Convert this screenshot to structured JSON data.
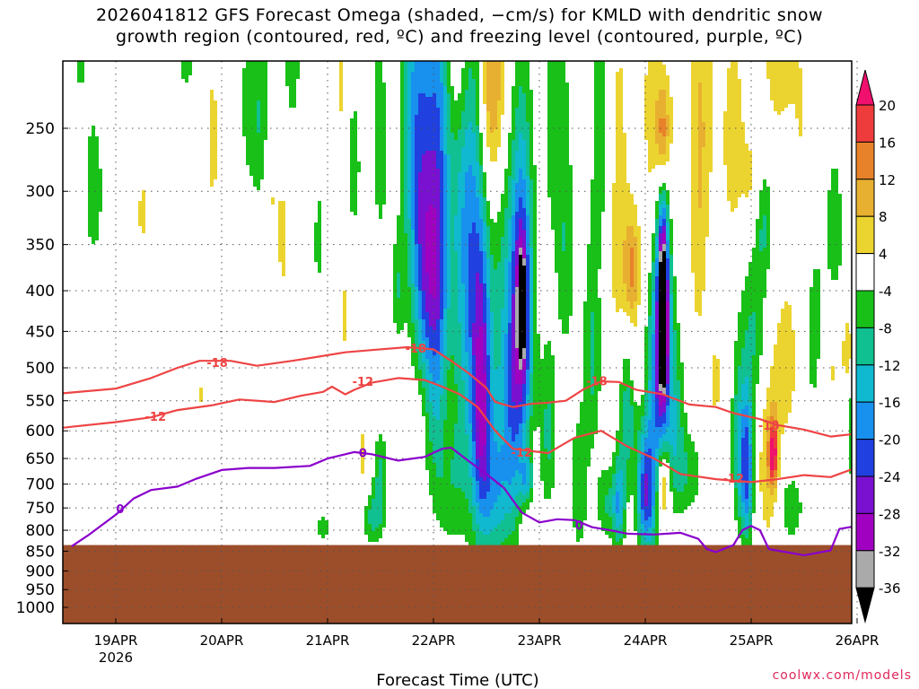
{
  "title_line1": "2026041812 GFS Forecast Omega (shaded, −cm/s) for KMLD with dendritic snow",
  "title_line2": "growth region (contoured, red, ºC) and freezing level (contoured, purple, ºC)",
  "credit": "coolwx.com/models",
  "colors": {
    "ground": "#9c4e2a",
    "dgz_contour": "#ee4444",
    "freezing_contour": "#8a00cc",
    "frame": "#000000",
    "grid": "#555555"
  },
  "chart_data": {
    "type": "heatmap",
    "title": "2026041812 GFS Forecast Omega (shaded, −cm/s) for KMLD with dendritic snow growth region (contoured, red, ºC) and freezing level (contoured, purple, ºC)",
    "xlabel": "Forecast Time (UTC)",
    "ylabel": "",
    "x_range_hours": [
      -18,
      168
    ],
    "x_ticks": [
      {
        "hours": 0,
        "label": "19APR",
        "sublabel": "2026"
      },
      {
        "hours": 24,
        "label": "20APR"
      },
      {
        "hours": 48,
        "label": "21APR"
      },
      {
        "hours": 72,
        "label": "22APR"
      },
      {
        "hours": 96,
        "label": "23APR"
      },
      {
        "hours": 120,
        "label": "24APR"
      },
      {
        "hours": 144,
        "label": "25APR"
      },
      {
        "hours": 168,
        "label": "26APR"
      }
    ],
    "y_range_hpa": [
      1050,
      200
    ],
    "y_ticks": [
      250,
      300,
      350,
      400,
      450,
      500,
      550,
      600,
      650,
      700,
      750,
      800,
      850,
      900,
      950,
      1000
    ],
    "surface_pressure_hpa": 835,
    "colorbar": {
      "levels": [
        20,
        16,
        12,
        8,
        4,
        -4,
        -8,
        -12,
        -16,
        -20,
        -24,
        -28,
        -32,
        -36
      ],
      "colors": [
        "#f0106e",
        "#ee3c3c",
        "#e8822a",
        "#e8b030",
        "#ecd430",
        "#ffffff",
        "#18c018",
        "#10c090",
        "#10b8d0",
        "#1890ee",
        "#2040e0",
        "#7a10d0",
        "#a000c0",
        "#aaaaaa",
        "#000000"
      ]
    },
    "omega_blobs": [
      {
        "h": -17.5,
        "p": 460,
        "dh": 1.5,
        "dp": 120,
        "v": 5
      },
      {
        "h": -13,
        "p": 210,
        "dh": 2,
        "dp": 60,
        "v": -6
      },
      {
        "h": -5,
        "p": 300,
        "dh": 2,
        "dp": 60,
        "v": -8
      },
      {
        "h": -8,
        "p": 190,
        "dh": 2,
        "dp": 45,
        "v": -6
      },
      {
        "h": 0,
        "p": 180,
        "dh": 2,
        "dp": 30,
        "v": 5
      },
      {
        "h": 6,
        "p": 320,
        "dh": 1.2,
        "dp": 50,
        "v": 5
      },
      {
        "h": 10,
        "p": 170,
        "dh": 2,
        "dp": 40,
        "v": 5
      },
      {
        "h": 16,
        "p": 190,
        "dh": 2,
        "dp": 40,
        "v": -7
      },
      {
        "h": 19,
        "p": 540,
        "dh": 1,
        "dp": 30,
        "v": 5
      },
      {
        "h": 22,
        "p": 260,
        "dh": 2,
        "dp": 80,
        "v": 5
      },
      {
        "h": 29,
        "p": 150,
        "dh": 2,
        "dp": 60,
        "v": 5
      },
      {
        "h": 30,
        "p": 210,
        "dh": 2,
        "dp": 80,
        "v": -7
      },
      {
        "h": 33,
        "p": 250,
        "dh": 2,
        "dp": 70,
        "v": -8
      },
      {
        "h": 35,
        "p": 300,
        "dh": 2,
        "dp": 60,
        "v": 5
      },
      {
        "h": 38,
        "p": 350,
        "dh": 1.5,
        "dp": 70,
        "v": 5
      },
      {
        "h": 40,
        "p": 200,
        "dh": 2,
        "dp": 50,
        "v": -7
      },
      {
        "h": 45,
        "p": 270,
        "dh": 2,
        "dp": 60,
        "v": 5
      },
      {
        "h": 46,
        "p": 330,
        "dh": 1.5,
        "dp": 70,
        "v": -7
      },
      {
        "h": 47,
        "p": 795,
        "dh": 1.5,
        "dp": 30,
        "v": -7
      },
      {
        "h": 51,
        "p": 210,
        "dh": 1.5,
        "dp": 60,
        "v": 5
      },
      {
        "h": 52,
        "p": 430,
        "dh": 1,
        "dp": 70,
        "v": 5
      },
      {
        "h": 54,
        "p": 280,
        "dh": 1.5,
        "dp": 60,
        "v": -7
      },
      {
        "h": 56,
        "p": 650,
        "dh": 1.5,
        "dp": 90,
        "v": 5
      },
      {
        "h": 58,
        "p": 770,
        "dh": 2,
        "dp": 60,
        "v": -9
      },
      {
        "h": 60,
        "p": 700,
        "dh": 1.5,
        "dp": 100,
        "v": -10
      },
      {
        "h": 60,
        "p": 250,
        "dh": 2,
        "dp": 100,
        "v": -7
      },
      {
        "h": 63,
        "p": 220,
        "dh": 2,
        "dp": 60,
        "v": 5
      },
      {
        "h": 64,
        "p": 400,
        "dh": 1.5,
        "dp": 60,
        "v": -7
      },
      {
        "h": 67,
        "p": 230,
        "dh": 3,
        "dp": 150,
        "v": -10
      },
      {
        "h": 68,
        "p": 590,
        "dh": 1.5,
        "dp": 50,
        "v": 5
      },
      {
        "h": 69,
        "p": 310,
        "dh": 2.5,
        "dp": 170,
        "v": -12
      },
      {
        "h": 71,
        "p": 380,
        "dh": 3,
        "dp": 120,
        "v": -10
      },
      {
        "h": 73,
        "p": 280,
        "dh": 3,
        "dp": 220,
        "v": -17
      },
      {
        "h": 73,
        "p": 500,
        "dh": 3,
        "dp": 200,
        "v": -9
      },
      {
        "h": 75,
        "p": 570,
        "dh": 2,
        "dp": 150,
        "v": 5
      },
      {
        "h": 76,
        "p": 680,
        "dh": 4,
        "dp": 150,
        "v": -8
      },
      {
        "h": 78,
        "p": 200,
        "dh": 3,
        "dp": 60,
        "v": 9
      },
      {
        "h": 79,
        "p": 330,
        "dh": 3,
        "dp": 230,
        "v": -12
      },
      {
        "h": 82,
        "p": 400,
        "dh": 3,
        "dp": 400,
        "v": -14
      },
      {
        "h": 83,
        "p": 560,
        "dh": 2,
        "dp": 200,
        "v": -18
      },
      {
        "h": 84,
        "p": 220,
        "dh": 3,
        "dp": 100,
        "v": 14
      },
      {
        "h": 86,
        "p": 720,
        "dh": 3,
        "dp": 150,
        "v": -12
      },
      {
        "h": 88,
        "p": 480,
        "dh": 3,
        "dp": 250,
        "v": -10
      },
      {
        "h": 87,
        "p": 210,
        "dh": 3,
        "dp": 80,
        "v": 7
      },
      {
        "h": 90,
        "p": 650,
        "dh": 2,
        "dp": 200,
        "v": -9
      },
      {
        "h": 92,
        "p": 430,
        "dh": 2.5,
        "dp": 180,
        "v": -30
      },
      {
        "h": 92,
        "p": 420,
        "dh": 0.7,
        "dp": 50,
        "v": -40
      },
      {
        "h": 93,
        "p": 690,
        "dh": 1.5,
        "dp": 50,
        "v": -13
      },
      {
        "h": 98,
        "p": 600,
        "dh": 2,
        "dp": 150,
        "v": -9
      },
      {
        "h": 100,
        "p": 250,
        "dh": 3,
        "dp": 100,
        "v": -7
      },
      {
        "h": 102,
        "p": 380,
        "dh": 2,
        "dp": 100,
        "v": -7
      },
      {
        "h": 104,
        "p": 520,
        "dh": 1,
        "dp": 60,
        "v": 5
      },
      {
        "h": 105,
        "p": 700,
        "dh": 2,
        "dp": 150,
        "v": -8
      },
      {
        "h": 108,
        "p": 480,
        "dh": 2,
        "dp": 150,
        "v": -9
      },
      {
        "h": 110,
        "p": 250,
        "dh": 2,
        "dp": 100,
        "v": -7
      },
      {
        "h": 111,
        "p": 740,
        "dh": 2,
        "dp": 80,
        "v": -8
      },
      {
        "h": 114,
        "p": 330,
        "dh": 2.5,
        "dp": 200,
        "v": 6
      },
      {
        "h": 114,
        "p": 740,
        "dh": 1.5,
        "dp": 100,
        "v": -16
      },
      {
        "h": 117,
        "p": 380,
        "dh": 1.8,
        "dp": 60,
        "v": 13
      },
      {
        "h": 116,
        "p": 560,
        "dh": 2,
        "dp": 120,
        "v": -12
      },
      {
        "h": 118,
        "p": 500,
        "dh": 2,
        "dp": 60,
        "v": 6
      },
      {
        "h": 120,
        "p": 720,
        "dh": 2,
        "dp": 120,
        "v": -20
      },
      {
        "h": 122,
        "p": 600,
        "dh": 2.5,
        "dp": 250,
        "v": -12
      },
      {
        "h": 122,
        "p": 250,
        "dh": 3,
        "dp": 150,
        "v": 5
      },
      {
        "h": 124,
        "p": 420,
        "dh": 2,
        "dp": 200,
        "v": -30
      },
      {
        "h": 124,
        "p": 430,
        "dh": 0.8,
        "dp": 80,
        "v": -40
      },
      {
        "h": 124,
        "p": 255,
        "dh": 1.5,
        "dp": 40,
        "v": 16
      },
      {
        "h": 124,
        "p": 700,
        "dh": 1.5,
        "dp": 80,
        "v": 16
      },
      {
        "h": 124,
        "p": 270,
        "dh": 3,
        "dp": 120,
        "v": 10
      },
      {
        "h": 127,
        "p": 600,
        "dh": 2,
        "dp": 150,
        "v": -10
      },
      {
        "h": 130,
        "p": 680,
        "dh": 3,
        "dp": 80,
        "v": -7
      },
      {
        "h": 132,
        "p": 350,
        "dh": 2,
        "dp": 150,
        "v": 5
      },
      {
        "h": 133,
        "p": 230,
        "dh": 3,
        "dp": 120,
        "v": 6
      },
      {
        "h": 136,
        "p": 520,
        "dh": 2,
        "dp": 80,
        "v": 5
      },
      {
        "h": 140,
        "p": 260,
        "dh": 2.5,
        "dp": 80,
        "v": 7
      },
      {
        "h": 141,
        "p": 620,
        "dh": 1.5,
        "dp": 150,
        "v": -10
      },
      {
        "h": 143,
        "p": 670,
        "dh": 1.5,
        "dp": 150,
        "v": -22
      },
      {
        "h": 145,
        "p": 440,
        "dh": 3,
        "dp": 130,
        "v": -8
      },
      {
        "h": 144,
        "p": 300,
        "dh": 2,
        "dp": 60,
        "v": 6
      },
      {
        "h": 147,
        "p": 330,
        "dh": 2,
        "dp": 50,
        "v": -7
      },
      {
        "h": 148,
        "p": 650,
        "dh": 2.5,
        "dp": 180,
        "v": 8
      },
      {
        "h": 149,
        "p": 640,
        "dh": 1,
        "dp": 60,
        "v": 18
      },
      {
        "h": 150,
        "p": 200,
        "dh": 4,
        "dp": 60,
        "v": 6
      },
      {
        "h": 152,
        "p": 500,
        "dh": 3,
        "dp": 120,
        "v": 6
      },
      {
        "h": 153,
        "p": 750,
        "dh": 3,
        "dp": 80,
        "v": -7
      },
      {
        "h": 156,
        "p": 300,
        "dh": 3,
        "dp": 150,
        "v": 5
      },
      {
        "h": 158,
        "p": 430,
        "dh": 3,
        "dp": 150,
        "v": -7
      },
      {
        "h": 162,
        "p": 500,
        "dh": 2,
        "dp": 100,
        "v": 5
      },
      {
        "h": 163,
        "p": 340,
        "dh": 2,
        "dp": 80,
        "v": -7
      },
      {
        "h": 166,
        "p": 480,
        "dh": 1.5,
        "dp": 60,
        "v": 7
      },
      {
        "h": 167,
        "p": 600,
        "dh": 1.5,
        "dp": 100,
        "v": -8
      }
    ],
    "contours": [
      {
        "name": "dgz-minus18",
        "value": -18,
        "color": "#ee4444",
        "points": [
          [
            -18,
            542
          ],
          [
            -10,
            537
          ],
          [
            0,
            531
          ],
          [
            8,
            515
          ],
          [
            14,
            500
          ],
          [
            19,
            490
          ],
          [
            26,
            490
          ],
          [
            32,
            497
          ],
          [
            40,
            490
          ],
          [
            46,
            484
          ],
          [
            52,
            478
          ],
          [
            58,
            475
          ],
          [
            66,
            471
          ],
          [
            72,
            474
          ],
          [
            76,
            490
          ],
          [
            80,
            508
          ],
          [
            84,
            530
          ],
          [
            86,
            552
          ],
          [
            90,
            560
          ],
          [
            94,
            555
          ],
          [
            98,
            553
          ],
          [
            102,
            550
          ],
          [
            106,
            532
          ],
          [
            110,
            520
          ],
          [
            114,
            521
          ],
          [
            118,
            533
          ],
          [
            124,
            540
          ],
          [
            130,
            556
          ],
          [
            136,
            560
          ],
          [
            140,
            570
          ],
          [
            146,
            580
          ],
          [
            150,
            590
          ],
          [
            156,
            598
          ],
          [
            162,
            610
          ],
          [
            168,
            605
          ]
        ],
        "labels": [
          {
            "h": 23,
            "p": 492,
            "text": "-18"
          },
          {
            "h": 68,
            "p": 472,
            "text": "-18"
          },
          {
            "h": 109,
            "p": 519,
            "text": "-18"
          },
          {
            "h": 148,
            "p": 590,
            "text": "-18"
          }
        ]
      },
      {
        "name": "dgz-minus12",
        "value": -12,
        "color": "#ee4444",
        "points": [
          [
            -18,
            600
          ],
          [
            -10,
            593
          ],
          [
            0,
            585
          ],
          [
            8,
            577
          ],
          [
            14,
            565
          ],
          [
            22,
            557
          ],
          [
            28,
            548
          ],
          [
            36,
            552
          ],
          [
            42,
            542
          ],
          [
            47,
            536
          ],
          [
            49,
            528
          ],
          [
            52,
            540
          ],
          [
            54,
            533
          ],
          [
            58,
            522
          ],
          [
            64,
            515
          ],
          [
            70,
            518
          ],
          [
            74,
            528
          ],
          [
            78,
            540
          ],
          [
            82,
            560
          ],
          [
            86,
            600
          ],
          [
            90,
            632
          ],
          [
            98,
            640
          ],
          [
            104,
            612
          ],
          [
            110,
            600
          ],
          [
            116,
            628
          ],
          [
            122,
            650
          ],
          [
            128,
            680
          ],
          [
            136,
            690
          ],
          [
            144,
            696
          ],
          [
            150,
            690
          ],
          [
            156,
            682
          ],
          [
            162,
            686
          ],
          [
            168,
            667
          ]
        ],
        "labels": [
          {
            "h": 9,
            "p": 575,
            "text": "-12"
          },
          {
            "h": 56,
            "p": 520,
            "text": "-12"
          },
          {
            "h": 92,
            "p": 638,
            "text": "-12"
          },
          {
            "h": 140,
            "p": 688,
            "text": "-12"
          }
        ]
      },
      {
        "name": "freezing-level-0",
        "value": 0,
        "color": "#8a00cc",
        "points": [
          [
            -10,
            838
          ],
          [
            -6,
            810
          ],
          [
            0,
            765
          ],
          [
            4,
            730
          ],
          [
            8,
            712
          ],
          [
            14,
            705
          ],
          [
            18,
            690
          ],
          [
            24,
            672
          ],
          [
            30,
            668
          ],
          [
            36,
            668
          ],
          [
            44,
            664
          ],
          [
            48,
            650
          ],
          [
            54,
            638
          ],
          [
            58,
            642
          ],
          [
            64,
            654
          ],
          [
            70,
            647
          ],
          [
            74,
            632
          ],
          [
            76,
            630
          ],
          [
            80,
            655
          ],
          [
            84,
            680
          ],
          [
            88,
            708
          ],
          [
            92,
            760
          ],
          [
            96,
            782
          ],
          [
            100,
            775
          ],
          [
            104,
            777
          ],
          [
            108,
            793
          ],
          [
            112,
            800
          ],
          [
            116,
            808
          ],
          [
            122,
            810
          ],
          [
            128,
            806
          ],
          [
            132,
            820
          ],
          [
            134,
            845
          ],
          [
            136,
            852
          ],
          [
            140,
            835
          ],
          [
            142,
            800
          ],
          [
            144,
            790
          ],
          [
            146,
            800
          ],
          [
            148,
            845
          ],
          [
            156,
            860
          ],
          [
            162,
            848
          ],
          [
            164,
            797
          ],
          [
            168,
            790
          ]
        ],
        "labels": [
          {
            "h": 1,
            "p": 752,
            "text": "0"
          },
          {
            "h": 56,
            "p": 639,
            "text": "0"
          },
          {
            "h": 105,
            "p": 788,
            "text": "0"
          }
        ]
      }
    ]
  }
}
